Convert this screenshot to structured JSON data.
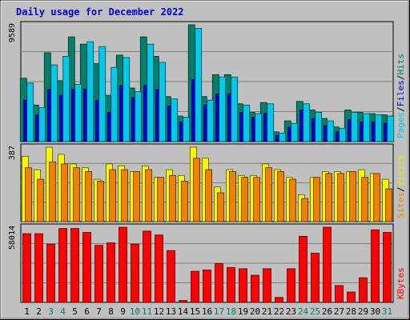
{
  "chart_data": {
    "type": "bar",
    "title": "Daily usage for December 2022",
    "categories": [
      "1",
      "2",
      "3",
      "4",
      "5",
      "6",
      "7",
      "8",
      "9",
      "10",
      "11",
      "12",
      "13",
      "14",
      "15",
      "16",
      "17",
      "18",
      "19",
      "20",
      "21",
      "22",
      "23",
      "24",
      "25",
      "26",
      "27",
      "28",
      "29",
      "30",
      "31"
    ],
    "weekend_days": [
      "3",
      "4",
      "10",
      "11",
      "17",
      "18",
      "24",
      "25",
      "31"
    ],
    "panels": [
      {
        "id": "top",
        "ymax_label": "9589",
        "ylim": [
          0,
          9589
        ],
        "legend": [
          {
            "text": "Pages",
            "color": "#00c8e8"
          },
          {
            "text": "/",
            "color": "#000000"
          },
          {
            "text": "Files",
            "color": "#0000d0"
          },
          {
            "text": "/",
            "color": "#000000"
          },
          {
            "text": "Hits",
            "color": "#00806a"
          }
        ],
        "series": [
          {
            "name": "Hits",
            "color": "#00806a",
            "values": [
              5200,
              3000,
              7300,
              5000,
              8600,
              8000,
              6400,
              3800,
              7100,
              4400,
              8600,
              7000,
              3700,
              2100,
              9589,
              3700,
              5500,
              5500,
              3100,
              2400,
              3200,
              800,
              1700,
              3300,
              2600,
              1900,
              1200,
              2600,
              2400,
              2300,
              2200
            ]
          },
          {
            "name": "Files",
            "color": "#0000d0",
            "values": [
              3400,
              2200,
              4300,
              3800,
              4300,
              4300,
              3400,
              2400,
              4600,
              3600,
              4600,
              4300,
              2900,
              1600,
              5100,
              3000,
              3900,
              3900,
              2400,
              2000,
              2300,
              500,
              1200,
              2600,
              1900,
              1300,
              800,
              1800,
              1600,
              1600,
              1500
            ]
          },
          {
            "name": "Pages",
            "color": "#00c8e8",
            "values": [
              4800,
              2800,
              6300,
              7000,
              4700,
              8200,
              7800,
              6100,
              6900,
              4100,
              8000,
              6500,
              3500,
              2000,
              9300,
              3400,
              5300,
              5300,
              3000,
              2300,
              3100,
              700,
              1500,
              3100,
              2400,
              1700,
              1100,
              2400,
              2300,
              2200,
              2100
            ]
          }
        ]
      },
      {
        "id": "middle",
        "ymax_label": "387",
        "ylim": [
          0,
          387
        ],
        "legend": [
          {
            "text": "Sites",
            "color": "#f08000"
          },
          {
            "text": "/",
            "color": "#000000"
          },
          {
            "text": "Visits",
            "color": "#e8e800"
          }
        ],
        "series": [
          {
            "name": "Visits",
            "color": "#f8f800",
            "values": [
              340,
              270,
              387,
              350,
              300,
              280,
              220,
              300,
              290,
              260,
              290,
              230,
              270,
              240,
              387,
              330,
              180,
              270,
              240,
              240,
              300,
              270,
              230,
              140,
              230,
              260,
              260,
              260,
              270,
              250,
              220
            ]
          },
          {
            "name": "Sites",
            "color": "#f08000",
            "values": [
              280,
              220,
              310,
              300,
              280,
              260,
              210,
              270,
              270,
              260,
              270,
              230,
              240,
              210,
              330,
              270,
              150,
              260,
              230,
              230,
              280,
              260,
              220,
              120,
              230,
              250,
              250,
              260,
              230,
              250,
              170
            ]
          }
        ]
      },
      {
        "id": "bottom",
        "ymax_label": "58014",
        "ylim": [
          0,
          58014
        ],
        "legend": [
          {
            "text": "KBytes",
            "color": "#ff0000"
          }
        ],
        "series": [
          {
            "name": "KBytes",
            "color": "#ff0000",
            "values": [
              53000,
              53000,
              45000,
              57000,
              57000,
              54000,
              44000,
              46000,
              58014,
              45000,
              55000,
              52000,
              40000,
              1500,
              24000,
              25000,
              30000,
              27000,
              26000,
              21000,
              26000,
              3800,
              26000,
              51000,
              38000,
              58000,
              13000,
              8000,
              19000,
              56000,
              54000
            ]
          }
        ]
      }
    ]
  }
}
